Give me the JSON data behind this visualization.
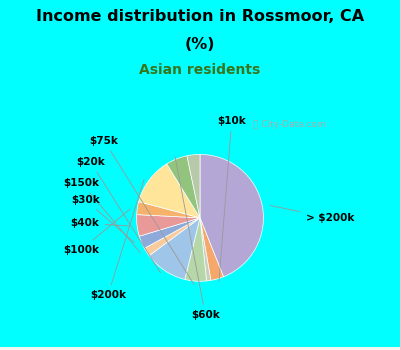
{
  "title_line1": "Income distribution in Rossmoor, CA",
  "title_line2": "(%)",
  "subtitle": "Asian residents",
  "bg_color": "#00FFFF",
  "chart_bg": "#e8f5ee",
  "slices": [
    {
      "label": "> $200k",
      "value": 40,
      "color": "#b4a7d6"
    },
    {
      "label": "$10k",
      "value": 3,
      "color": "#f6a86b"
    },
    {
      "label": null,
      "value": 1,
      "color": "#ccccbb"
    },
    {
      "label": "$75k",
      "value": 5,
      "color": "#b6d7a8"
    },
    {
      "label": "$20k",
      "value": 10,
      "color": "#9fc5e8"
    },
    {
      "label": "$150k",
      "value": 2,
      "color": "#f9cb9c"
    },
    {
      "label": "$30k",
      "value": 3,
      "color": "#8eaadb"
    },
    {
      "label": "$40k",
      "value": 5,
      "color": "#ea9999"
    },
    {
      "label": "$100k",
      "value": 3,
      "color": "#f6b26b"
    },
    {
      "label": "$200k",
      "value": 11,
      "color": "#ffe599"
    },
    {
      "label": "$60k",
      "value": 5,
      "color": "#93c47d"
    },
    {
      "label": null,
      "value": 3,
      "color": "#b7c9a8"
    }
  ],
  "watermark": "City-Data.com",
  "title_fontsize": 11.5,
  "subtitle_fontsize": 10,
  "subtitle_color": "#38761d",
  "label_fontsize": 7.5
}
